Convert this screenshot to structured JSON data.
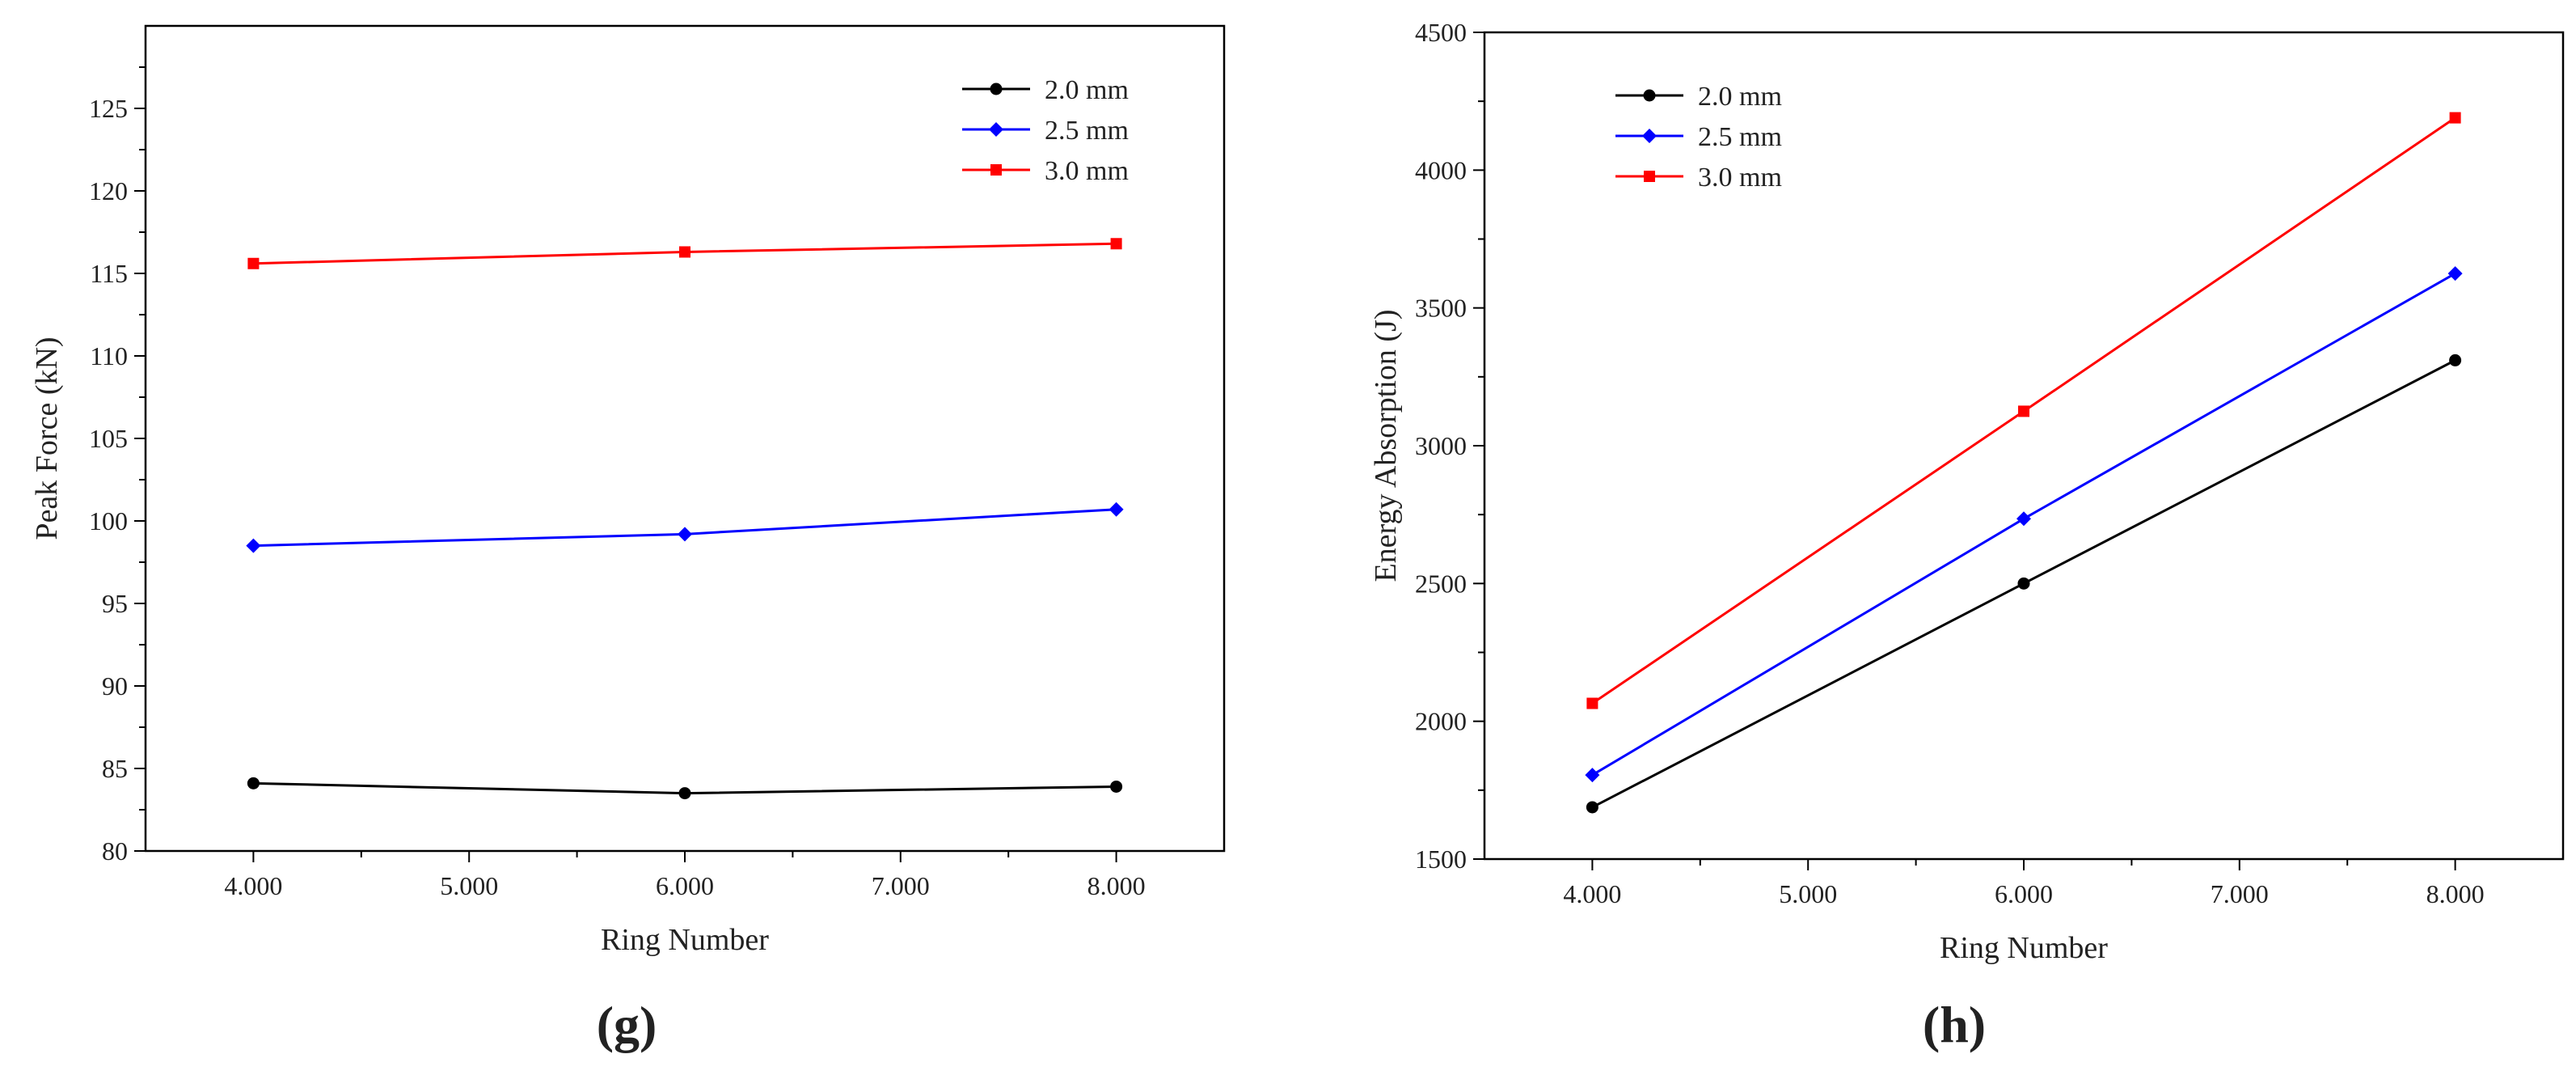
{
  "chart_data": [
    {
      "type": "line",
      "panel_label": "(g)",
      "xlabel": "Ring Number",
      "ylabel": "Peak Force (kN)",
      "x": [
        4,
        6,
        8
      ],
      "xlim": [
        3.5,
        8.5
      ],
      "ylim": [
        80,
        130
      ],
      "xticks": [
        4,
        5,
        6,
        7,
        8
      ],
      "xtick_labels": [
        "4.000",
        "5.000",
        "6.000",
        "7.000",
        "8.000"
      ],
      "yticks": [
        80,
        85,
        90,
        95,
        100,
        105,
        110,
        115,
        120,
        125
      ],
      "ytick_labels": [
        "80",
        "85",
        "90",
        "95",
        "100",
        "105",
        "110",
        "115",
        "120",
        "125"
      ],
      "legend_position": "top-right",
      "series": [
        {
          "name": "2.0 mm",
          "color": "#000000",
          "marker": "circle",
          "values": [
            84.1,
            83.5,
            83.9
          ]
        },
        {
          "name": "2.5 mm",
          "color": "#0000ff",
          "marker": "diamond",
          "values": [
            98.5,
            99.2,
            100.7
          ]
        },
        {
          "name": "3.0 mm",
          "color": "#ff0000",
          "marker": "square",
          "values": [
            115.6,
            116.3,
            116.8
          ]
        }
      ]
    },
    {
      "type": "line",
      "panel_label": "(h)",
      "xlabel": "Ring Number",
      "ylabel": "Energy Absorption (J)",
      "x": [
        4,
        6,
        8
      ],
      "xlim": [
        3.5,
        8.5
      ],
      "ylim": [
        1500,
        4500
      ],
      "xticks": [
        4,
        5,
        6,
        7,
        8
      ],
      "xtick_labels": [
        "4.000",
        "5.000",
        "6.000",
        "7.000",
        "8.000"
      ],
      "yticks": [
        1500,
        2000,
        2500,
        3000,
        3500,
        4000,
        4500
      ],
      "ytick_labels": [
        "1500",
        "2000",
        "2500",
        "3000",
        "3500",
        "4000",
        "4500"
      ],
      "legend_position": "top-left",
      "series": [
        {
          "name": "2.0 mm",
          "color": "#000000",
          "marker": "circle",
          "values": [
            1688,
            2500,
            3310
          ]
        },
        {
          "name": "2.5 mm",
          "color": "#0000ff",
          "marker": "diamond",
          "values": [
            1805,
            2735,
            3625
          ]
        },
        {
          "name": "3.0 mm",
          "color": "#ff0000",
          "marker": "square",
          "values": [
            2065,
            3125,
            4190
          ]
        }
      ]
    }
  ]
}
